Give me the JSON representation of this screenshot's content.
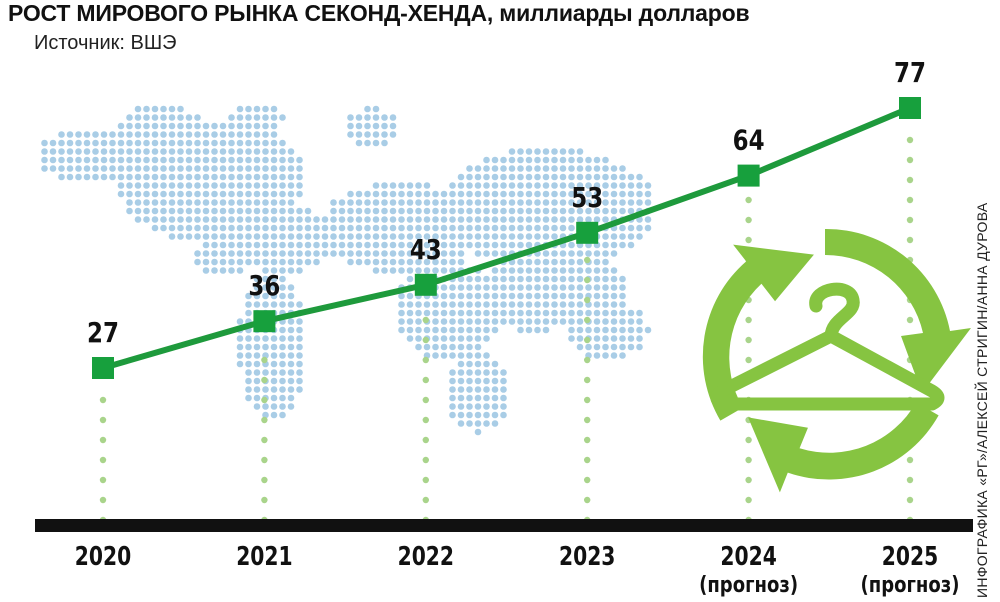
{
  "header": {
    "title": "РОСТ МИРОВОГО РЫНКА СЕКОНД-ХЕНДА, миллиарды долларов",
    "source": "Источник: ВШЭ"
  },
  "credit": "ИНФОГРАФИКА «РГ»/АЛЕКСЕЙ СТРИГИН/АННА ДУРОВА",
  "colors": {
    "line": "#1e9a3c",
    "marker": "#17a03d",
    "guide_dots": "#a9d48b",
    "map_dots": "#a9cde6",
    "recycle_arrows": "#86c441",
    "baseline": "#111111"
  },
  "decorations": [
    "world-map",
    "recycle-arrows-icon",
    "clothes-hanger-icon"
  ],
  "chart_data": {
    "type": "line",
    "title": "РОСТ МИРОВОГО РЫНКА СЕКОНД-ХЕНДА, миллиарды долларов",
    "x": [
      "2020",
      "2021",
      "2022",
      "2023",
      "2024",
      "2025"
    ],
    "x_sublabels": [
      "",
      "",
      "",
      "",
      "(прогноз)",
      "(прогноз)"
    ],
    "series": [
      {
        "values": [
          27,
          36,
          43,
          53,
          64,
          77
        ]
      }
    ],
    "data_labels": [
      "27",
      "36",
      "43",
      "53",
      "64",
      "77"
    ],
    "xlabel": "",
    "ylabel": "",
    "ylim": [
      0,
      85
    ],
    "grid": false,
    "legend": "none"
  }
}
